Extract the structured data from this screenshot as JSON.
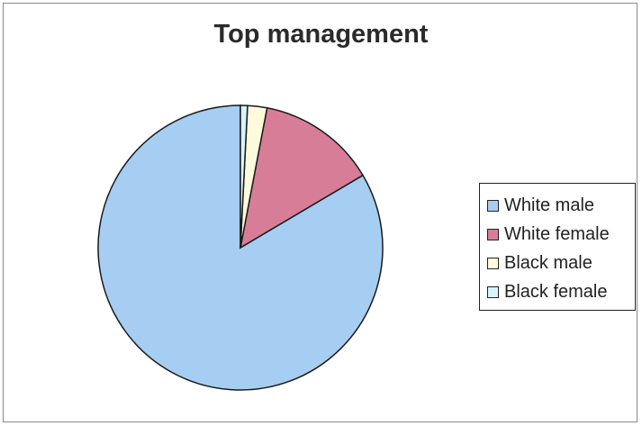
{
  "chart_data": {
    "type": "pie",
    "title": "Top management",
    "categories": [
      "White male",
      "White female",
      "Black male",
      "Black female"
    ],
    "values": [
      83.5,
      13.5,
      2.2,
      0.8
    ],
    "unit": "percent",
    "colors": [
      "#a6cdf2",
      "#d77d98",
      "#fdfbdc",
      "#d9f4fb"
    ],
    "legend_placement": "right"
  }
}
